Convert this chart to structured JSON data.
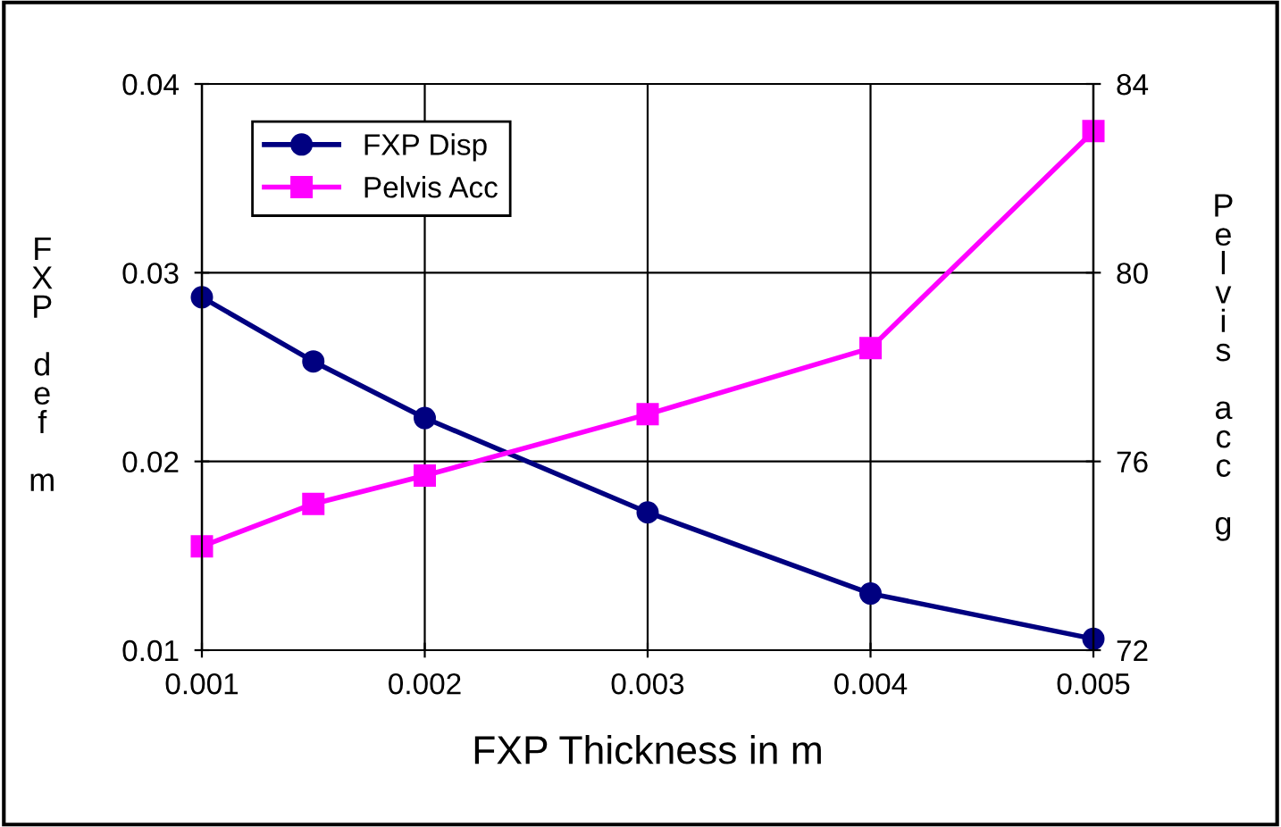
{
  "chart_data": {
    "type": "line",
    "xlabel": "FXP Thickness in m",
    "ylabel": "FXP def m",
    "y2label": "Pelvis acc g",
    "x": [
      0.001,
      0.0015,
      0.002,
      0.003,
      0.004,
      0.005
    ],
    "series": [
      {
        "name": "FXP Disp",
        "color": "#000080",
        "marker": "circle",
        "values": [
          0.0287,
          0.0253,
          0.0223,
          0.0173,
          0.013,
          0.0106
        ]
      },
      {
        "name": "Pelvis Acc",
        "color": "#ff00ff",
        "marker": "square",
        "axis": "y2",
        "values": [
          74.2,
          75.1,
          75.7,
          77.0,
          78.4,
          83.0
        ]
      }
    ],
    "xlim": [
      0.001,
      0.005
    ],
    "xticks": [
      0.001,
      0.002,
      0.003,
      0.004,
      0.005
    ],
    "ylim": [
      0.01,
      0.04
    ],
    "yticks": [
      0.01,
      0.02,
      0.03,
      0.04
    ],
    "y2lim": [
      72,
      84
    ],
    "y2ticks": [
      72,
      76,
      80,
      84
    ],
    "grid": true,
    "legend": "top left",
    "line_style": "solid"
  }
}
